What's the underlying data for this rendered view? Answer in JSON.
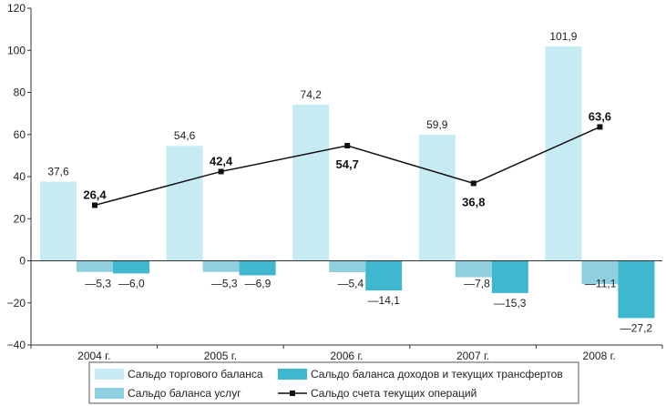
{
  "chart_data": {
    "type": "bar",
    "categories": [
      "2004 г.",
      "2005 г.",
      "2006 г.",
      "2007 г.",
      "2008 г."
    ],
    "ylim": [
      -40,
      120
    ],
    "yticks": [
      "−40",
      "−20",
      "0",
      "20",
      "40",
      "60",
      "80",
      "100",
      "120"
    ],
    "series": [
      {
        "name": "Сальдо торгового баланса",
        "kind": "bar",
        "color": "#c6ebf2",
        "values": [
          37.6,
          54.6,
          74.2,
          59.9,
          101.9
        ],
        "labels": [
          "37,6",
          "54,6",
          "74,2",
          "59,9",
          "101,9"
        ]
      },
      {
        "name": "Сальдо баланса услуг",
        "kind": "bar",
        "color": "#8ed0e0",
        "values": [
          -5.3,
          -5.3,
          -5.4,
          -7.8,
          -11.1
        ],
        "labels": [
          "—5,3",
          "—5,3",
          "—5,4",
          "—7,8",
          "—11,1"
        ]
      },
      {
        "name": "Сальдо баланса доходов и текущих трансфертов",
        "kind": "bar",
        "color": "#3fb8cf",
        "values": [
          -6.0,
          -6.9,
          -14.1,
          -15.3,
          -27.2
        ],
        "labels": [
          "—6,0",
          "—6,9",
          "—14,1",
          "—15,3",
          "—27,2"
        ]
      },
      {
        "name": "Сальдо счета текущих операций",
        "kind": "line",
        "color": "#111111",
        "values": [
          26.4,
          42.4,
          54.7,
          36.8,
          63.6
        ],
        "labels": [
          "26,4",
          "42,4",
          "54,7",
          "36,8",
          "63,6"
        ]
      }
    ],
    "grid": false,
    "legend_position": "bottom"
  }
}
